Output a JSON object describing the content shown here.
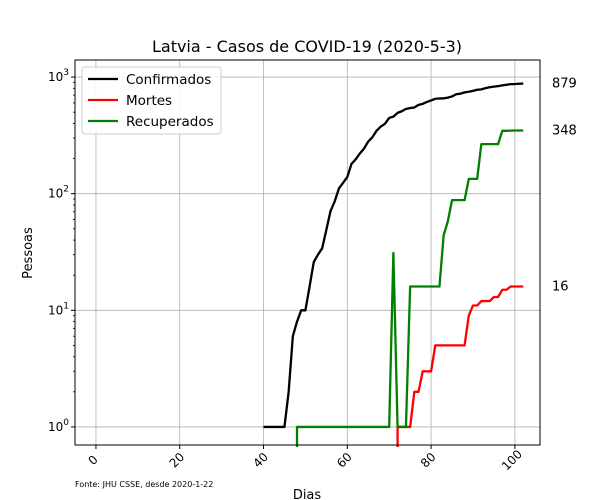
{
  "chart_data": {
    "type": "line",
    "title": "Latvia - Casos de COVID-19 (2020-5-3)",
    "xlabel": "Dias",
    "ylabel": "Pessoas",
    "yscale": "log",
    "xlim": [
      -5,
      106
    ],
    "ylim": [
      0.7,
      1400
    ],
    "xticks": [
      0,
      20,
      40,
      60,
      80,
      100
    ],
    "yticks": [
      {
        "value": 1,
        "base": "10",
        "exp": "0"
      },
      {
        "value": 10,
        "base": "10",
        "exp": "1"
      },
      {
        "value": 100,
        "base": "10",
        "exp": "2"
      },
      {
        "value": 1000,
        "base": "10",
        "exp": "3"
      }
    ],
    "grid": true,
    "legend_position": "top-left",
    "source": "Fonte: JHU CSSE, desde 2020-1-22",
    "series": [
      {
        "name": "Confirmados",
        "color": "#000000",
        "x": [
          40,
          45,
          46,
          47,
          48,
          49,
          50,
          51,
          52,
          53,
          54,
          55,
          56,
          57,
          58,
          59,
          60,
          61,
          62,
          63,
          64,
          65,
          66,
          67,
          68,
          69,
          70,
          71,
          72,
          73,
          74,
          75,
          76,
          77,
          78,
          79,
          80,
          81,
          82,
          83,
          84,
          85,
          86,
          87,
          88,
          89,
          90,
          91,
          92,
          93,
          94,
          95,
          96,
          97,
          98,
          99,
          100,
          101,
          102
        ],
        "y": [
          1,
          1,
          2,
          6,
          8,
          10,
          10,
          16,
          26,
          30,
          34,
          49,
          71,
          86,
          111,
          124,
          139,
          180,
          197,
          221,
          244,
          280,
          305,
          347,
          376,
          398,
          446,
          458,
          493,
          509,
          533,
          542,
          548,
          577,
          589,
          612,
          630,
          651,
          655,
          657,
          666,
          682,
          712,
          720,
          739,
          748,
          761,
          778,
          784,
          804,
          818,
          827,
          836,
          849,
          858,
          870,
          871,
          876,
          879
        ]
      },
      {
        "name": "Mortes",
        "color": "#ff0000",
        "x": [
          72,
          72,
          75,
          76,
          77,
          78,
          79,
          80,
          81,
          82,
          83,
          84,
          85,
          86,
          87,
          88,
          89,
          90,
          91,
          92,
          93,
          94,
          95,
          96,
          97,
          98,
          99,
          100,
          101,
          102
        ],
        "y": [
          0.5,
          1,
          1,
          2,
          2,
          3,
          3,
          3,
          5,
          5,
          5,
          5,
          5,
          5,
          5,
          5,
          9,
          11,
          11,
          12,
          12,
          12,
          13,
          13,
          15,
          15,
          16,
          16,
          16,
          16
        ]
      },
      {
        "name": "Recuperados",
        "color": "#008000",
        "x": [
          48,
          48,
          70,
          71,
          72,
          73,
          74,
          75,
          76,
          77,
          78,
          79,
          80,
          81,
          82,
          83,
          84,
          85,
          86,
          87,
          88,
          89,
          90,
          91,
          92,
          93,
          94,
          95,
          96,
          97,
          98,
          99,
          100,
          101,
          102
        ],
        "y": [
          0.5,
          1,
          1,
          31,
          1,
          1,
          1,
          16,
          16,
          16,
          16,
          16,
          16,
          16,
          16,
          44,
          58,
          88,
          88,
          88,
          88,
          134,
          134,
          134,
          266,
          266,
          266,
          266,
          266,
          346,
          346,
          347,
          348,
          348,
          348
        ]
      }
    ],
    "end_labels": [
      {
        "text": "879",
        "value": 879
      },
      {
        "text": "348",
        "value": 348
      },
      {
        "text": "16",
        "value": 16
      }
    ]
  }
}
